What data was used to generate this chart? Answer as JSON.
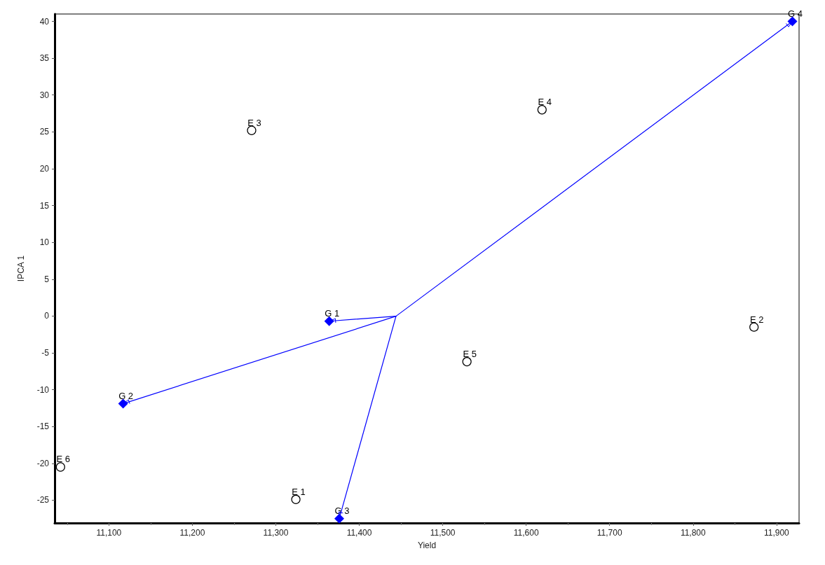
{
  "chart_data": {
    "type": "scatter",
    "xlabel": "Yield",
    "ylabel": "IPCA 1",
    "xlim": [
      11035,
      11927
    ],
    "ylim": [
      -28.1,
      41
    ],
    "xticks": [
      {
        "value": 11100,
        "label": "11,100"
      },
      {
        "value": 11200,
        "label": "11,200"
      },
      {
        "value": 11300,
        "label": "11,300"
      },
      {
        "value": 11400,
        "label": "11,400"
      },
      {
        "value": 11500,
        "label": "11,500"
      },
      {
        "value": 11600,
        "label": "11,600"
      },
      {
        "value": 11700,
        "label": "11,700"
      },
      {
        "value": 11800,
        "label": "11,800"
      },
      {
        "value": 11900,
        "label": "11,900"
      }
    ],
    "yticks": [
      -25,
      -20,
      -15,
      -10,
      -5,
      0,
      5,
      10,
      15,
      20,
      25,
      30,
      35,
      40
    ],
    "grid": false,
    "series": [
      {
        "marker": "circle",
        "color": "#000000",
        "x": [
          11324,
          11873,
          11271,
          11619,
          11529,
          11042
        ],
        "values": [
          -24.9,
          -1.5,
          25.2,
          28.0,
          -6.2,
          -20.5
        ],
        "value_labels": [
          "E 1",
          "E 2",
          "E 3",
          "E 4",
          "E 5",
          "E 6"
        ]
      },
      {
        "marker": "diamond",
        "color": "#0000ff",
        "x": [
          11364,
          11117,
          11376,
          11919
        ],
        "values": [
          -0.7,
          -11.9,
          -27.5,
          40
        ],
        "value_labels": [
          "G 1",
          "G 2",
          "G 3",
          "G 4"
        ]
      }
    ]
  }
}
